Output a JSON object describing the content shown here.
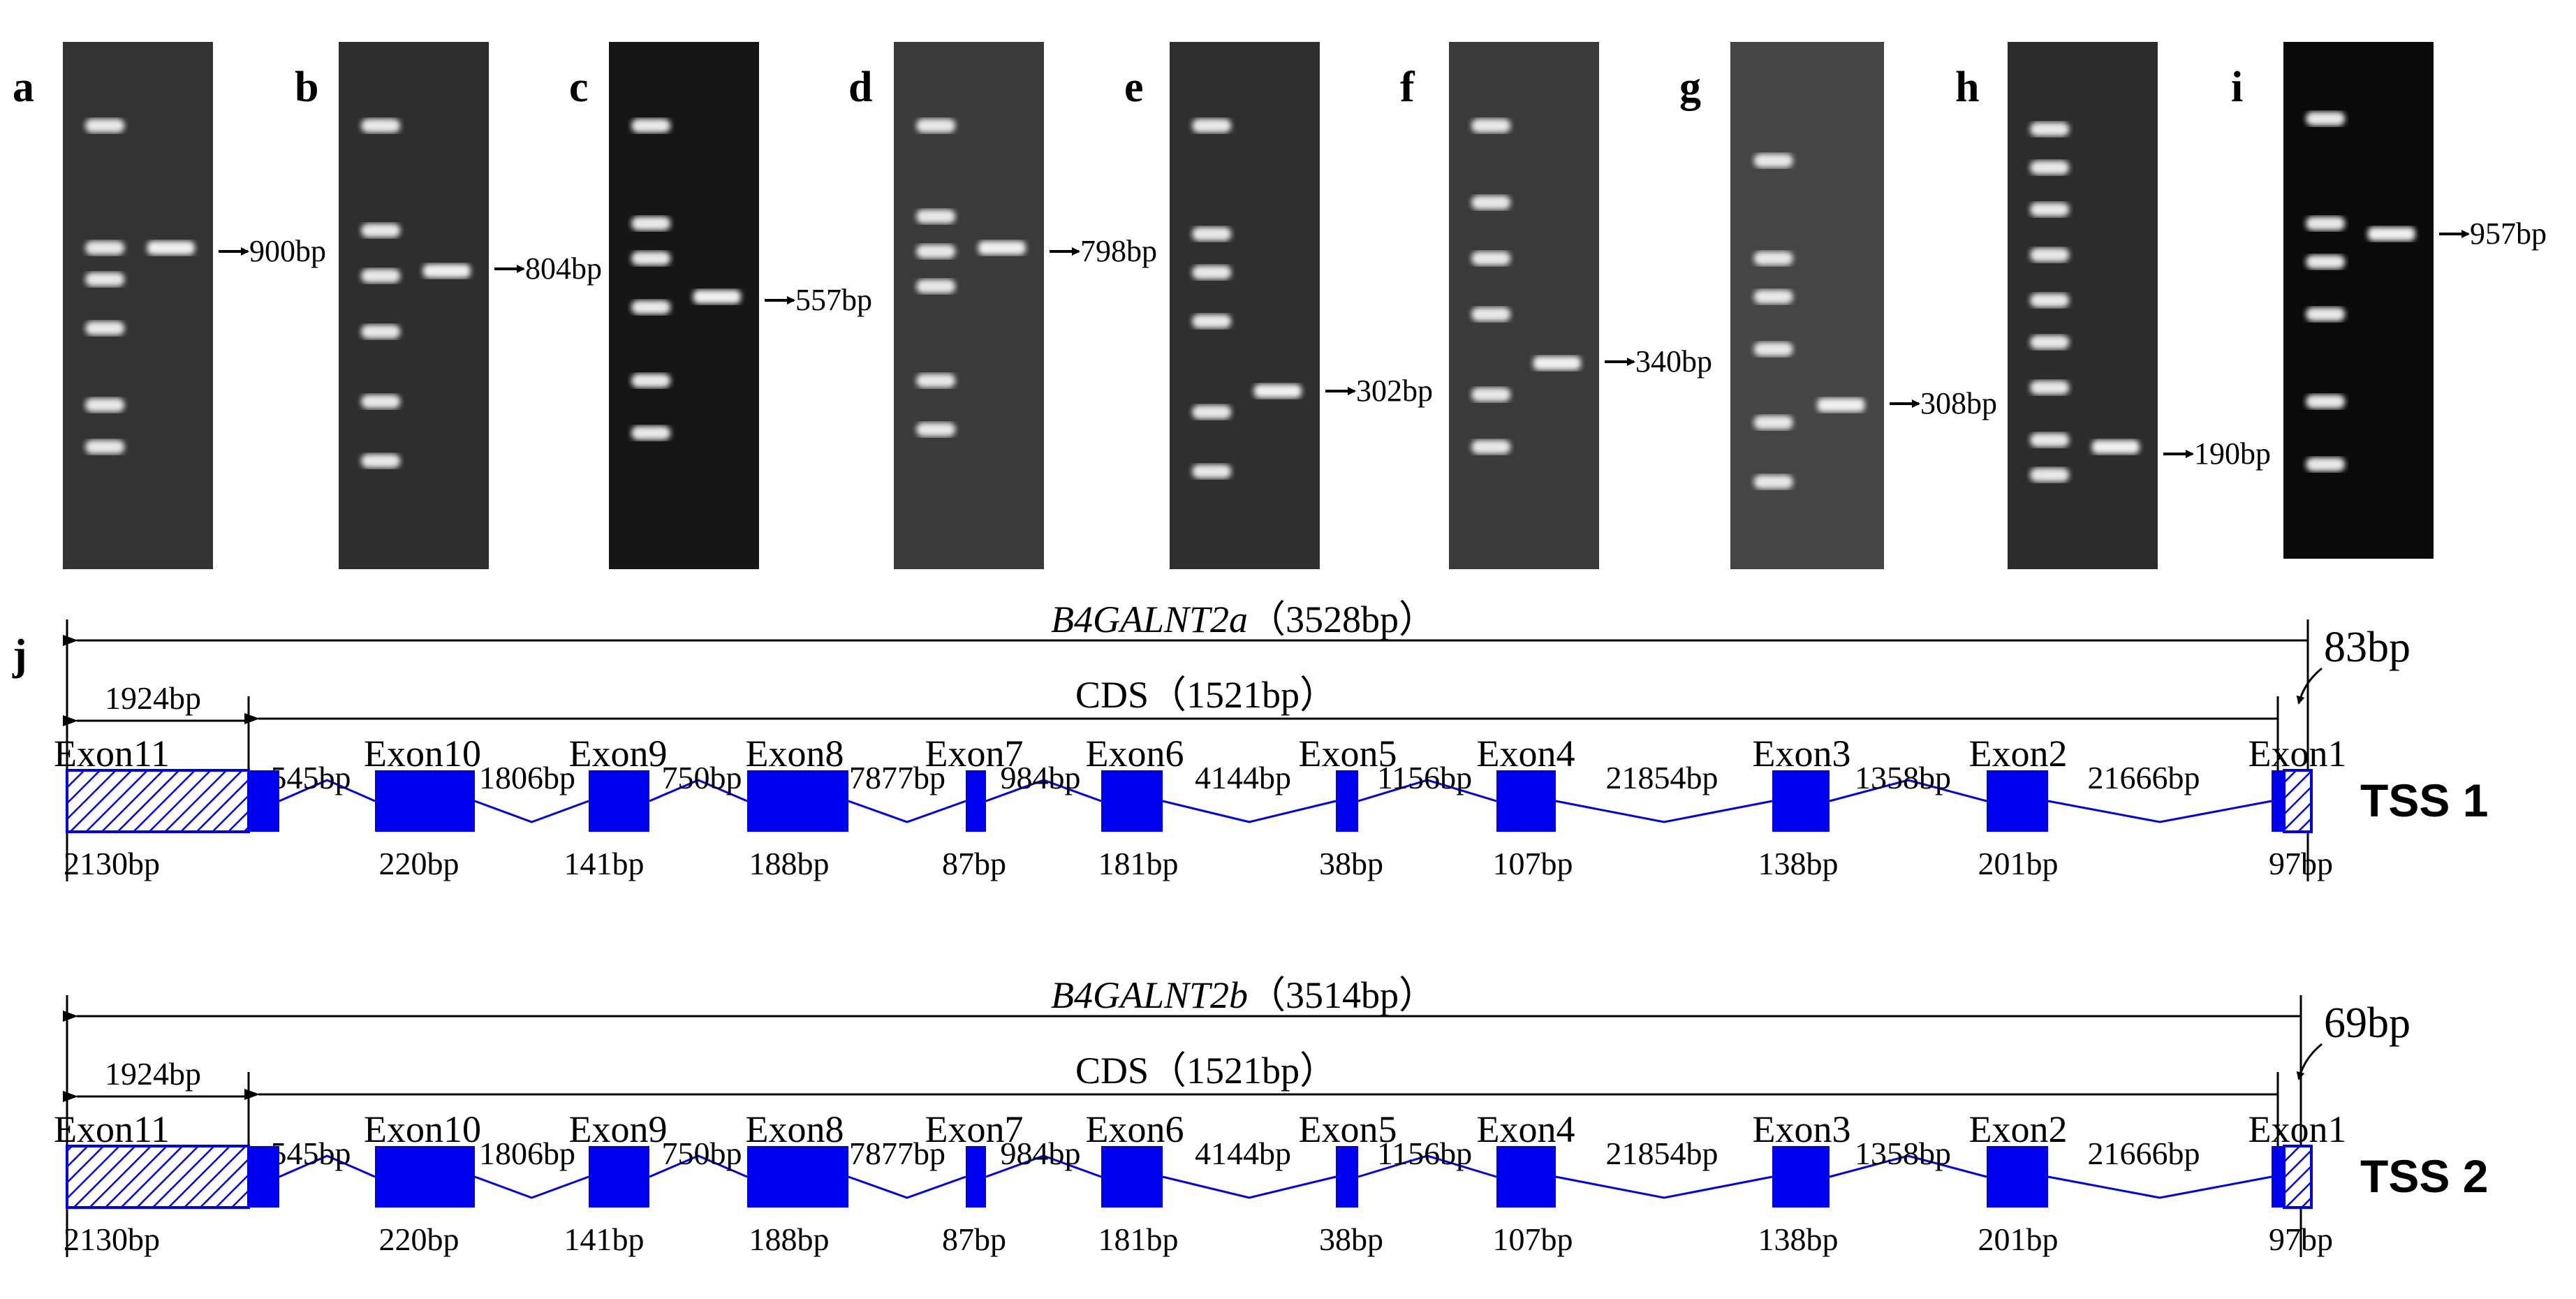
{
  "gels": [
    {
      "letter": "a",
      "size": "900bp"
    },
    {
      "letter": "b",
      "size": "804bp"
    },
    {
      "letter": "c",
      "size": "557bp"
    },
    {
      "letter": "d",
      "size": "798bp"
    },
    {
      "letter": "e",
      "size": "302bp"
    },
    {
      "letter": "f",
      "size": "340bp"
    },
    {
      "letter": "g",
      "size": "308bp"
    },
    {
      "letter": "h",
      "size": "190bp"
    },
    {
      "letter": "i",
      "size": "957bp"
    }
  ],
  "structure_panel_letter": "j",
  "exon_names": [
    "Exon11",
    "Exon10",
    "Exon9",
    "Exon8",
    "Exon7",
    "Exon6",
    "Exon5",
    "Exon4",
    "Exon3",
    "Exon2",
    "Exon1"
  ],
  "exon_sizes": [
    "2130bp",
    "220bp",
    "141bp",
    "188bp",
    "87bp",
    "181bp",
    "38bp",
    "107bp",
    "138bp",
    "201bp",
    "97bp"
  ],
  "intron_sizes": [
    "545bp",
    "1806bp",
    "750bp",
    "7877bp",
    "984bp",
    "4144bp",
    "1156bp",
    "21854bp",
    "1358bp",
    "21666bp"
  ],
  "transcripts": [
    {
      "gene": "B4GALNT2a",
      "length": "（3528bp）",
      "utr5": "83bp",
      "utr3": "1924bp",
      "cds": "CDS（1521bp）",
      "tss": "TSS 1"
    },
    {
      "gene": "B4GALNT2b",
      "length": "（3514bp）",
      "utr5": "69bp",
      "utr3": "1924bp",
      "cds": "CDS（1521bp）",
      "tss": "TSS 2"
    }
  ],
  "colors": {
    "exon": "#0000ee",
    "gel_dark": "#111111",
    "gel_light": "#3a3a3a",
    "band": "#f2f2f2"
  }
}
